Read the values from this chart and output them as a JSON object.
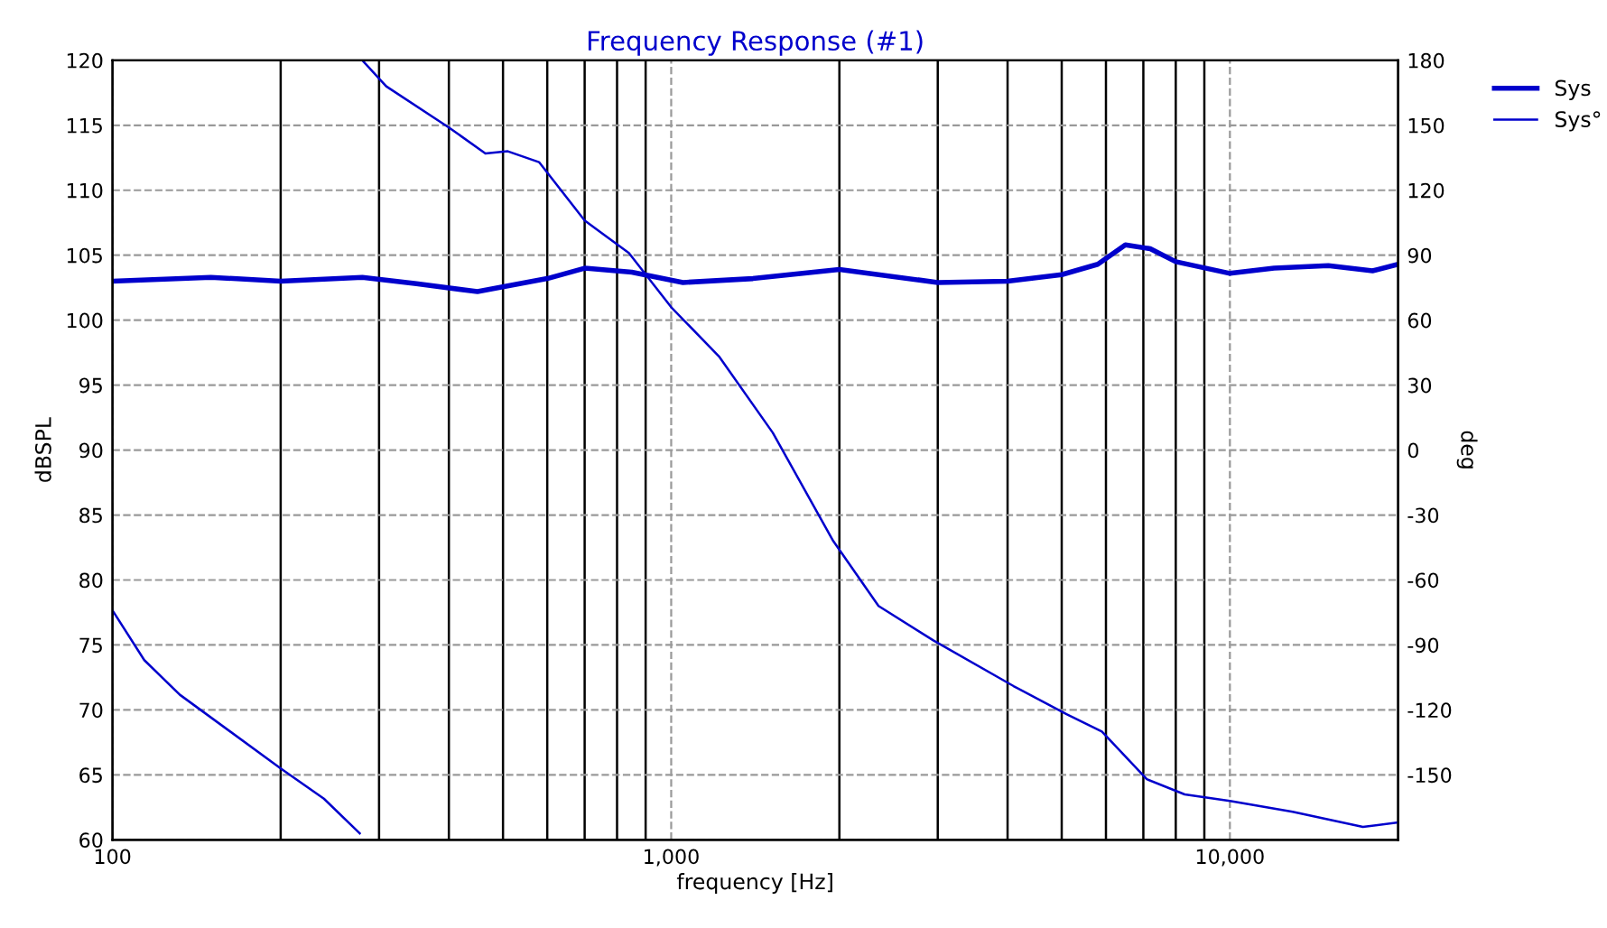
{
  "chart_data": {
    "type": "line",
    "title": "Frequency Response (#1)",
    "xlabel": "frequency [Hz]",
    "ylabel": "dBSPL",
    "y2label": "deg",
    "log": "x",
    "grid": true,
    "legend": "top right",
    "xlim": [
      100,
      20000
    ],
    "xticks": [
      {
        "value": 100,
        "label": "100"
      },
      {
        "value": 200,
        "label": null
      },
      {
        "value": 300,
        "label": null
      },
      {
        "value": 400,
        "label": null
      },
      {
        "value": 500,
        "label": null
      },
      {
        "value": 600,
        "label": null
      },
      {
        "value": 700,
        "label": null
      },
      {
        "value": 800,
        "label": null
      },
      {
        "value": 900,
        "label": null
      },
      {
        "value": 1000,
        "label": "1,000"
      },
      {
        "value": 2000,
        "label": null
      },
      {
        "value": 3000,
        "label": null
      },
      {
        "value": 4000,
        "label": null
      },
      {
        "value": 5000,
        "label": null
      },
      {
        "value": 6000,
        "label": null
      },
      {
        "value": 7000,
        "label": null
      },
      {
        "value": 8000,
        "label": null
      },
      {
        "value": 9000,
        "label": null
      },
      {
        "value": 10000,
        "label": "10,000"
      }
    ],
    "ylim": [
      60,
      120
    ],
    "yticks": [
      60,
      65,
      70,
      75,
      80,
      85,
      90,
      95,
      100,
      105,
      110,
      115,
      120
    ],
    "y2lim": [
      -180,
      180
    ],
    "y2ticks": [
      -150,
      -120,
      -90,
      -60,
      -30,
      0,
      30,
      60,
      90,
      120,
      150,
      180
    ],
    "series": [
      {
        "name": "Sys",
        "color": "#0000cc",
        "line_style": "solid",
        "x": [
          100,
          150,
          200,
          280,
          350,
          450,
          600,
          700,
          850,
          1050,
          1400,
          2000,
          3000,
          4000,
          5000,
          5800,
          6500,
          7200,
          8000,
          10000,
          12000,
          15000,
          18000,
          20000
        ],
        "values": [
          103,
          103.3,
          103,
          103.3,
          102.8,
          102.2,
          103.2,
          104,
          103.7,
          102.9,
          103.2,
          103.9,
          102.9,
          103,
          103.5,
          104.3,
          105.8,
          105.5,
          104.5,
          103.6,
          104,
          104.2,
          103.8,
          104.3
        ]
      },
      {
        "name": "Sys°",
        "color": "#0000cc",
        "axis": "y2",
        "line_style": "solid",
        "x": [
          100,
          114,
          132,
          200,
          239,
          277,
          278,
          280,
          309,
          400,
          465,
          510,
          580,
          700,
          840,
          1000,
          1220,
          1520,
          1950,
          2350,
          2950,
          4100,
          5100,
          5900,
          7100,
          8300,
          10000,
          12950,
          17300,
          20000
        ],
        "values": [
          -74,
          -97,
          -113,
          -147,
          -161,
          -177,
          null,
          180,
          168,
          149,
          137,
          138,
          133,
          106,
          91,
          66,
          43,
          8,
          -42,
          -72,
          -88,
          -109,
          -122,
          -130,
          -152,
          -159,
          -162,
          -167,
          -174,
          -172
        ]
      }
    ]
  }
}
